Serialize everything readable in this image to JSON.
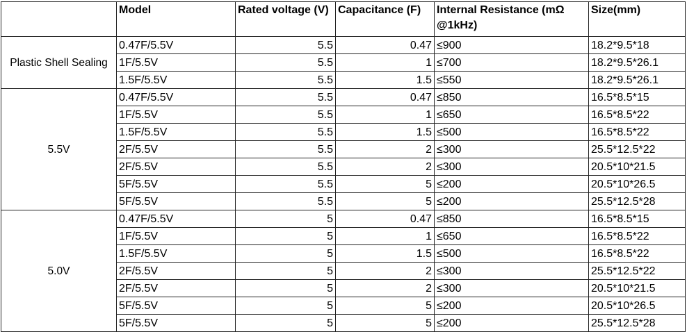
{
  "headers": {
    "group": "",
    "model": "Model",
    "voltage": "Rated voltage (V)",
    "capacitance": "Capacitance (F)",
    "resistance": "Internal Resistance (mΩ @1kHz)",
    "size": "Size(mm)"
  },
  "groups": [
    {
      "label": "Plastic Shell Sealing",
      "rows": [
        {
          "model": "0.47F/5.5V",
          "voltage": "5.5",
          "capacitance": "0.47",
          "resistance": "≤900",
          "size": "18.2*9.5*18"
        },
        {
          "model": "1F/5.5V",
          "voltage": "5.5",
          "capacitance": "1",
          "resistance": "≤700",
          "size": "18.2*9.5*26.1"
        },
        {
          "model": "1.5F/5.5V",
          "voltage": "5.5",
          "capacitance": "1.5",
          "resistance": "≤550",
          "size": "18.2*9.5*26.1"
        }
      ]
    },
    {
      "label": "5.5V",
      "rows": [
        {
          "model": "0.47F/5.5V",
          "voltage": "5.5",
          "capacitance": "0.47",
          "resistance": "≤850",
          "size": "16.5*8.5*15"
        },
        {
          "model": "1F/5.5V",
          "voltage": "5.5",
          "capacitance": "1",
          "resistance": "≤650",
          "size": "16.5*8.5*22"
        },
        {
          "model": "1.5F/5.5V",
          "voltage": "5.5",
          "capacitance": "1.5",
          "resistance": "≤500",
          "size": "16.5*8.5*22"
        },
        {
          "model": "2F/5.5V",
          "voltage": "5.5",
          "capacitance": "2",
          "resistance": "≤300",
          "size": "25.5*12.5*22"
        },
        {
          "model": "2F/5.5V",
          "voltage": "5.5",
          "capacitance": "2",
          "resistance": "≤300",
          "size": "20.5*10*21.5"
        },
        {
          "model": "5F/5.5V",
          "voltage": "5.5",
          "capacitance": "5",
          "resistance": "≤200",
          "size": "20.5*10*26.5"
        },
        {
          "model": "5F/5.5V",
          "voltage": "5.5",
          "capacitance": "5",
          "resistance": "≤200",
          "size": "25.5*12.5*28"
        }
      ]
    },
    {
      "label": "5.0V",
      "rows": [
        {
          "model": "0.47F/5.5V",
          "voltage": "5",
          "capacitance": "0.47",
          "resistance": "≤850",
          "size": "16.5*8.5*15"
        },
        {
          "model": "1F/5.5V",
          "voltage": "5",
          "capacitance": "1",
          "resistance": "≤650",
          "size": "16.5*8.5*22"
        },
        {
          "model": "1.5F/5.5V",
          "voltage": "5",
          "capacitance": "1.5",
          "resistance": "≤500",
          "size": "16.5*8.5*22"
        },
        {
          "model": "2F/5.5V",
          "voltage": "5",
          "capacitance": "2",
          "resistance": "≤300",
          "size": "25.5*12.5*22"
        },
        {
          "model": "2F/5.5V",
          "voltage": "5",
          "capacitance": "2",
          "resistance": "≤300",
          "size": "20.5*10*21.5"
        },
        {
          "model": "5F/5.5V",
          "voltage": "5",
          "capacitance": "5",
          "resistance": "≤200",
          "size": "20.5*10*26.5"
        },
        {
          "model": "5F/5.5V",
          "voltage": "5",
          "capacitance": "5",
          "resistance": "≤200",
          "size": "25.5*12.5*28"
        }
      ]
    }
  ]
}
